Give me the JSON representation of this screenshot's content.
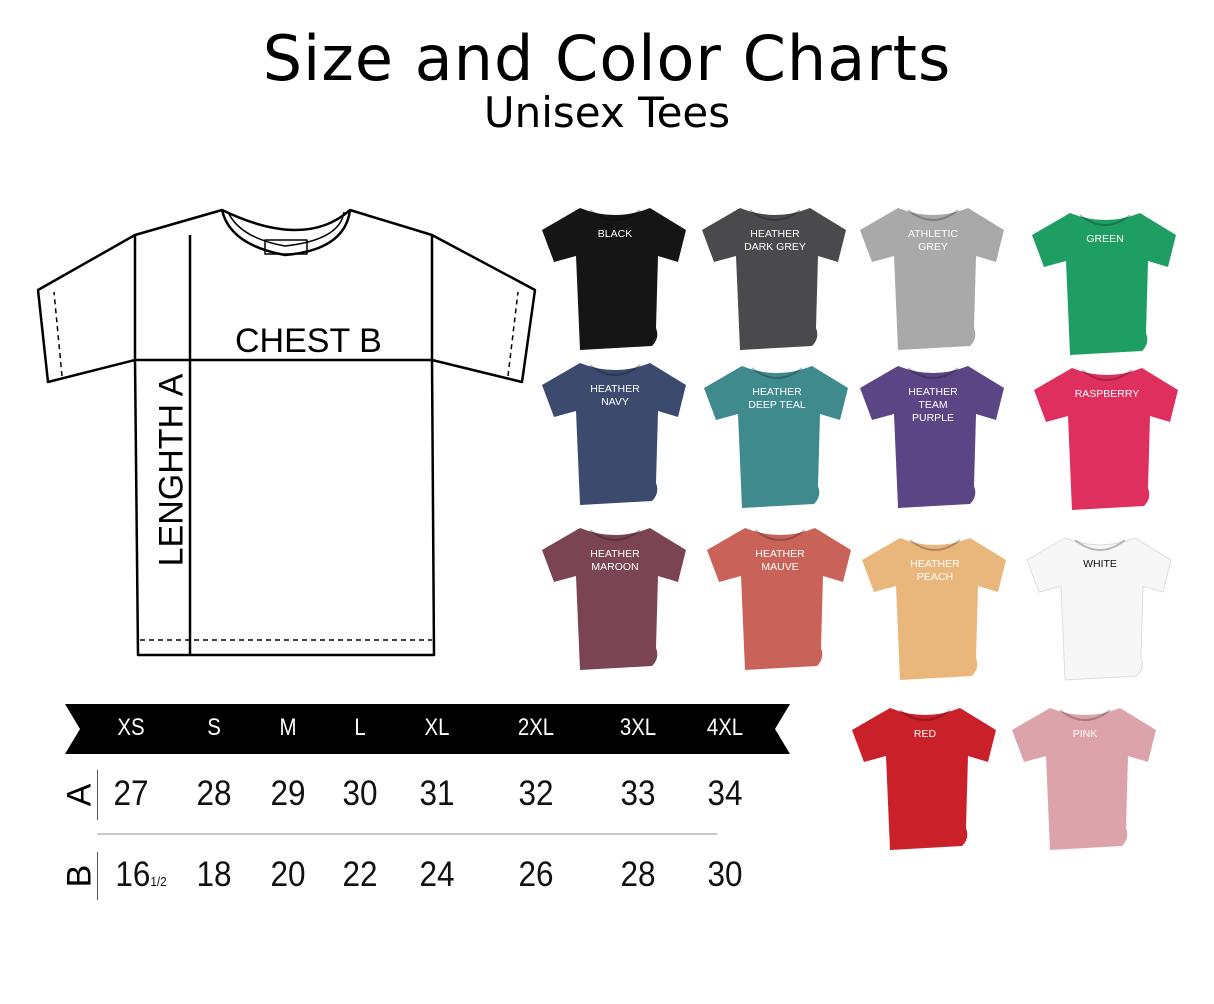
{
  "header": {
    "title": "Size and Color Charts",
    "subtitle": "Unisex Tees"
  },
  "diagram": {
    "chest_label": "CHEST B",
    "length_label": "LENGHTH A"
  },
  "size_table": {
    "sizes": [
      "XS",
      "S",
      "M",
      "L",
      "XL",
      "2XL",
      "3XL",
      "4XL"
    ],
    "rows": [
      {
        "label": "A",
        "values": [
          "27",
          "28",
          "29",
          "30",
          "31",
          "32",
          "33",
          "34"
        ]
      },
      {
        "label": "B",
        "values": [
          "16",
          "18",
          "20",
          "22",
          "24",
          "26",
          "28",
          "30"
        ]
      }
    ],
    "xs_b_fraction": "1/2"
  },
  "colors": [
    {
      "name": "BLACK",
      "hex": "#151515",
      "text": "#ffffff"
    },
    {
      "name": "HEATHER\nDARK GREY",
      "hex": "#4a4a4d",
      "text": "#ffffff"
    },
    {
      "name": "ATHLETIC\nGREY",
      "hex": "#a9a9aa",
      "text": "#ffffff"
    },
    {
      "name": "GREEN",
      "hex": "#1f9e63",
      "text": "#ffffff"
    },
    {
      "name": "HEATHER\nNAVY",
      "hex": "#3b4a6d",
      "text": "#ffffff"
    },
    {
      "name": "HEATHER\nDEEP TEAL",
      "hex": "#3f8a8d",
      "text": "#ffffff"
    },
    {
      "name": "HEATHER\nTEAM\nPURPLE",
      "hex": "#5c4585",
      "text": "#ffffff"
    },
    {
      "name": "RASPBERRY",
      "hex": "#df2f5f",
      "text": "#ffffff"
    },
    {
      "name": "HEATHER\nMAROON",
      "hex": "#7a4453",
      "text": "#ffffff"
    },
    {
      "name": "HEATHER\nMAUVE",
      "hex": "#c9635a",
      "text": "#ffffff"
    },
    {
      "name": "HEATHER\nPEACH",
      "hex": "#e9b67c",
      "text": "#ffffff"
    },
    {
      "name": "WHITE",
      "hex": "#f7f7f7",
      "text": "#111111"
    },
    {
      "name": "RED",
      "hex": "#c9202a",
      "text": "#ffffff"
    },
    {
      "name": "PINK",
      "hex": "#dca3ab",
      "text": "#ffffff"
    }
  ]
}
